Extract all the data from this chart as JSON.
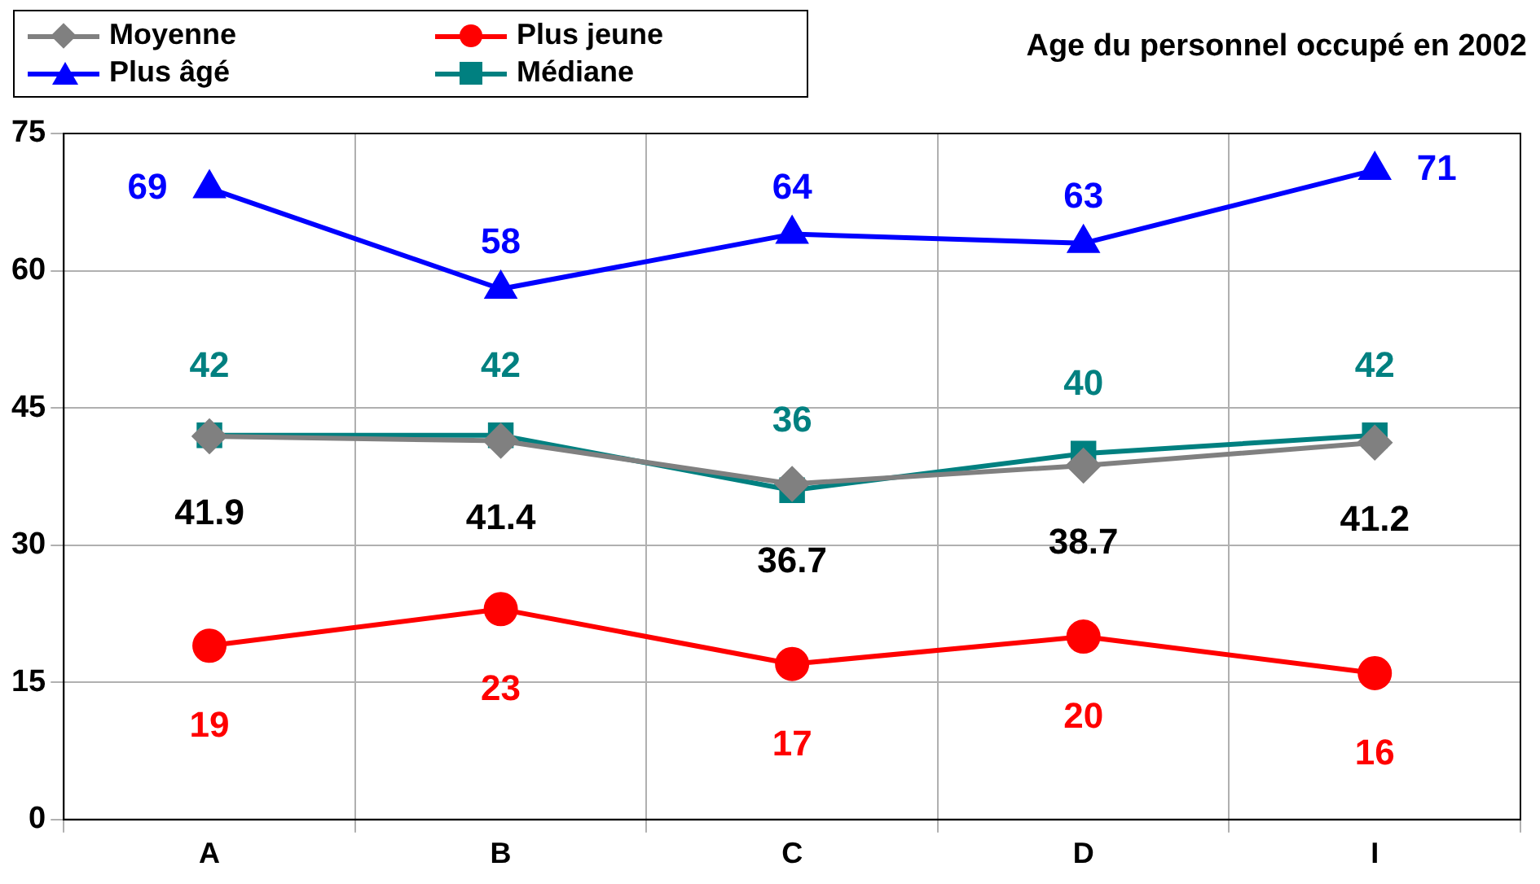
{
  "chart_data": {
    "type": "line",
    "title": "Age du personnel occupé en 2002",
    "categories": [
      "A",
      "B",
      "C",
      "D",
      "I"
    ],
    "series": [
      {
        "name": "Moyenne",
        "color": "#808080",
        "marker": "diamond",
        "values": [
          41.9,
          41.4,
          36.7,
          38.7,
          41.2
        ]
      },
      {
        "name": "Plus jeune",
        "color": "#ff0000",
        "marker": "circle",
        "values": [
          19,
          23,
          17,
          20,
          16
        ]
      },
      {
        "name": "Plus âgé",
        "color": "#0000ff",
        "marker": "triangle",
        "values": [
          69,
          58,
          64,
          63,
          71
        ]
      },
      {
        "name": "Médiane",
        "color": "#008080",
        "marker": "square",
        "values": [
          42,
          42,
          36,
          40,
          42
        ]
      }
    ],
    "ylim": [
      0,
      75
    ],
    "yticks": [
      0,
      15,
      30,
      45,
      60,
      75
    ],
    "grid": true,
    "legend": "top left",
    "data_labels": true
  }
}
